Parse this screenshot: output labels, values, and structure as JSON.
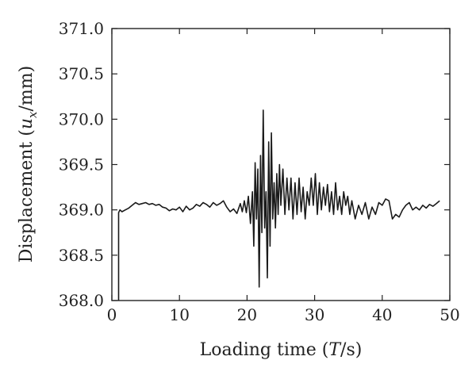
{
  "chart_data": {
    "type": "line",
    "xlabel_parts": [
      "Loading time (",
      "T",
      "/s)"
    ],
    "ylabel_parts": [
      "Displacement (",
      "u",
      "x",
      "/mm)"
    ],
    "xlim": [
      0,
      50
    ],
    "ylim": [
      368.0,
      371.0
    ],
    "x_ticks": [
      0,
      10,
      20,
      30,
      40,
      50
    ],
    "x_tick_labels": [
      "0",
      "10",
      "20",
      "30",
      "40",
      "50"
    ],
    "y_ticks": [
      368.0,
      368.5,
      369.0,
      369.5,
      370.0,
      370.5,
      371.0
    ],
    "y_tick_labels": [
      "368.0",
      "368.5",
      "369.0",
      "369.5",
      "370.0",
      "370.5",
      "371.0"
    ],
    "grid": false,
    "line_color": "#1a1a1a",
    "series": [
      {
        "x": [
          1.0,
          1.0,
          1.2,
          1.5,
          2.0,
          2.5,
          3.0,
          3.5,
          4.0,
          4.5,
          5.0,
          5.5,
          6.0,
          6.5,
          7.0,
          7.5,
          8.0,
          8.5,
          9.0,
          9.5,
          10.0,
          10.5,
          11.0,
          11.5,
          12.0,
          12.5,
          13.0,
          13.5,
          14.0,
          14.5,
          15.0,
          15.5,
          16.0,
          16.5,
          17.0,
          17.5,
          18.0,
          18.5,
          19.0,
          19.3,
          19.6,
          19.9,
          20.2,
          20.5,
          20.8,
          21.0,
          21.2,
          21.4,
          21.6,
          21.8,
          22.0,
          22.2,
          22.4,
          22.6,
          22.8,
          23.0,
          23.2,
          23.4,
          23.6,
          23.8,
          24.0,
          24.2,
          24.4,
          24.6,
          24.8,
          25.0,
          25.3,
          25.6,
          25.9,
          26.2,
          26.5,
          26.8,
          27.1,
          27.4,
          27.7,
          28.0,
          28.3,
          28.6,
          28.9,
          29.2,
          29.5,
          29.8,
          30.1,
          30.4,
          30.7,
          31.0,
          31.3,
          31.6,
          31.9,
          32.2,
          32.5,
          32.8,
          33.1,
          33.4,
          33.7,
          34.0,
          34.3,
          34.6,
          34.9,
          35.2,
          35.5,
          36.0,
          36.5,
          37.0,
          37.5,
          38.0,
          38.5,
          39.0,
          39.5,
          40.0,
          40.5,
          41.0,
          41.5,
          42.0,
          42.5,
          43.0,
          43.5,
          44.0,
          44.5,
          45.0,
          45.5,
          46.0,
          46.5,
          47.0,
          47.5,
          48.0,
          48.5
        ],
        "y": [
          368.0,
          368.97,
          369.0,
          368.98,
          369.0,
          369.02,
          369.05,
          369.08,
          369.06,
          369.07,
          369.08,
          369.06,
          369.07,
          369.05,
          369.06,
          369.03,
          369.02,
          368.99,
          369.01,
          369.0,
          369.03,
          368.98,
          369.04,
          369.0,
          369.02,
          369.06,
          369.04,
          369.08,
          369.06,
          369.03,
          369.08,
          369.05,
          369.07,
          369.1,
          369.03,
          368.98,
          369.01,
          368.96,
          369.07,
          368.98,
          369.1,
          368.97,
          369.15,
          368.85,
          369.2,
          368.6,
          369.52,
          368.9,
          369.45,
          368.15,
          369.6,
          368.75,
          370.1,
          368.8,
          369.2,
          368.25,
          369.75,
          368.6,
          369.85,
          368.9,
          369.3,
          368.8,
          369.4,
          368.95,
          369.5,
          369.05,
          369.45,
          368.95,
          369.35,
          369.0,
          369.35,
          368.9,
          369.3,
          368.95,
          369.35,
          368.98,
          369.25,
          368.9,
          369.2,
          369.05,
          369.35,
          369.05,
          369.4,
          368.95,
          369.3,
          369.0,
          369.25,
          369.05,
          369.28,
          368.98,
          369.2,
          368.95,
          369.3,
          369.0,
          369.15,
          368.95,
          369.2,
          369.05,
          369.15,
          368.95,
          369.1,
          368.9,
          369.05,
          368.95,
          369.08,
          368.9,
          369.03,
          368.95,
          369.08,
          369.05,
          369.12,
          369.1,
          368.9,
          368.95,
          368.92,
          369.0,
          369.05,
          369.08,
          369.0,
          369.03,
          369.0,
          369.05,
          369.02,
          369.06,
          369.04,
          369.07,
          369.1
        ]
      }
    ]
  }
}
